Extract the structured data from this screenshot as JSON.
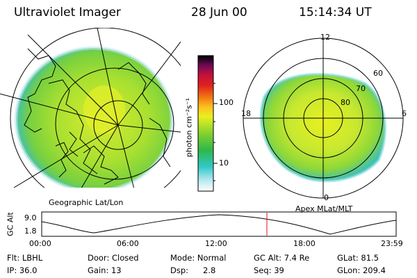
{
  "header": {
    "instrument": "Ultraviolet Imager",
    "date": "28 Jun 00",
    "time": "15:14:34 UT"
  },
  "colors": {
    "aurora_bright": "#e8f020",
    "aurora_mid": "#8fd83a",
    "aurora_low": "#30c8b8",
    "grid": "#000000",
    "time_marker": "#e01010"
  },
  "left_panel": {
    "caption": "Geographic Lat/Lon"
  },
  "right_panel": {
    "caption": "Apex MLat/MLT",
    "mlt_labels": {
      "top": "12",
      "left": "18",
      "right": "6",
      "bottom": "0"
    },
    "lat_labels": [
      "60",
      "70",
      "80"
    ]
  },
  "colorbar": {
    "unit_label": "photon cm⁻²s⁻¹",
    "tick_100": "100",
    "tick_10": "10",
    "stops": [
      "#ffffff",
      "#b8e8ee",
      "#30c8c8",
      "#2db84a",
      "#80d030",
      "#e8f020",
      "#ffc020",
      "#f07010",
      "#e02020",
      "#c0103c",
      "#8c0a60",
      "#3a0a40",
      "#000000"
    ]
  },
  "timeline": {
    "y_label": "GC Alt",
    "y_ticks": [
      "9.0",
      "1.8"
    ],
    "x_ticks": [
      "00:00",
      "06:00",
      "12:00",
      "18:00",
      "23:59"
    ],
    "marker_time": "15:14"
  },
  "status": {
    "flt": "Flt: LBHL",
    "ip": "IP: 36.0",
    "door": "Door: Closed",
    "gain": "Gain: 13",
    "mode": "Mode: Normal",
    "dsp_label": "Dsp:",
    "dsp_value": "2.8",
    "gc_alt": "GC Alt: 7.4 Re",
    "seq": "Seq: 39",
    "glat": "GLat: 81.5",
    "glon": "GLon: 209.4"
  }
}
